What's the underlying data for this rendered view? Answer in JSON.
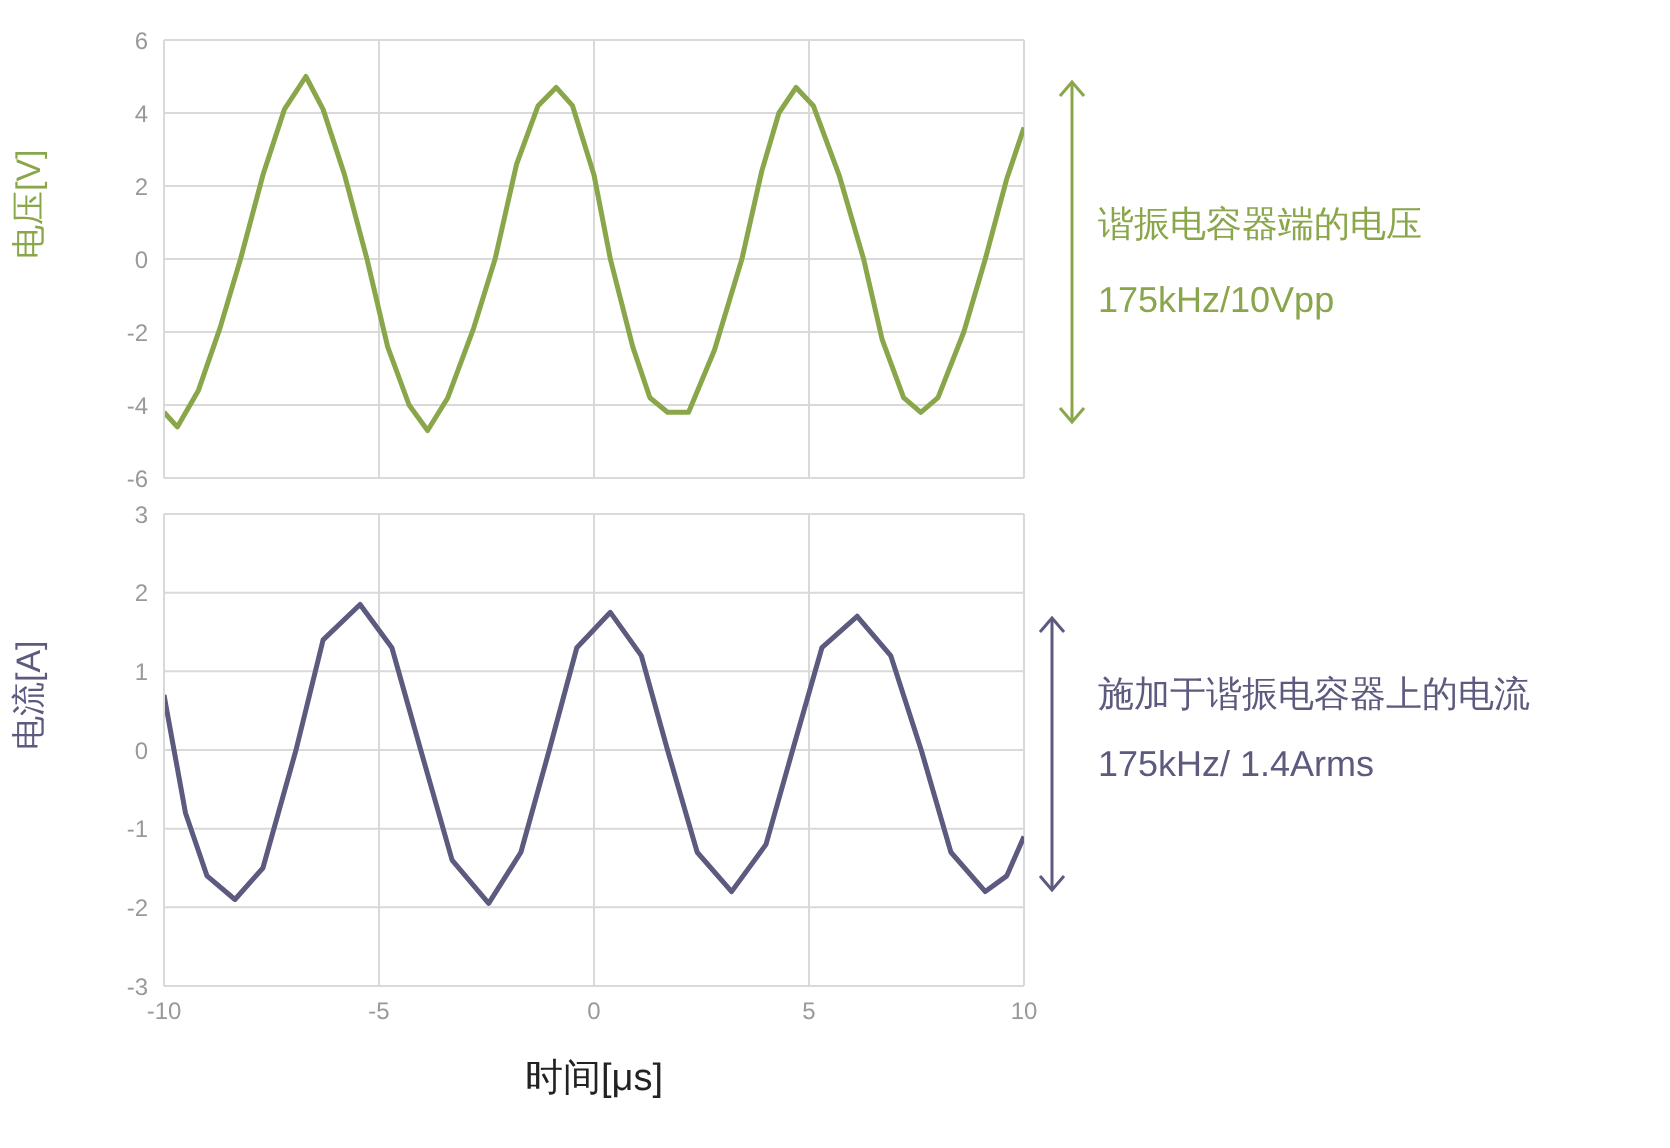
{
  "chart_data": [
    {
      "type": "line",
      "ylabel": "电压[V]",
      "xlim": [
        -10,
        10
      ],
      "xticks": [
        -10,
        -5,
        0,
        5,
        10
      ],
      "ylim": [
        -6,
        6
      ],
      "yticks": [
        -6,
        -4,
        -2,
        0,
        2,
        4,
        6
      ],
      "grid": true,
      "tick_labels": "y",
      "marker": "none",
      "line_style": "solid",
      "annotations": [
        "谐振电容器端的电压",
        "175kHz/10Vpp"
      ],
      "x": [
        -10,
        -9.69,
        -9.2,
        -8.7,
        -8.22,
        -7.7,
        -7.2,
        -6.7,
        -6.3,
        -5.8,
        -5.28,
        -4.8,
        -4.3,
        -3.87,
        -3.4,
        -2.8,
        -2.3,
        -1.8,
        -1.3,
        -0.88,
        -0.5,
        0,
        0.38,
        0.9,
        1.3,
        1.71,
        2.2,
        2.8,
        3.44,
        3.9,
        4.3,
        4.7,
        5.1,
        5.7,
        6.27,
        6.7,
        7.2,
        7.6,
        8.0,
        8.6,
        9.1,
        9.6,
        10
      ],
      "series": [
        {
          "color": "#8aa64a",
          "values": [
            -4.2,
            -4.6,
            -3.6,
            -1.9,
            0,
            2.3,
            4.1,
            5.0,
            4.1,
            2.3,
            0,
            -2.4,
            -4.0,
            -4.7,
            -3.8,
            -1.9,
            0,
            2.6,
            4.2,
            4.7,
            4.2,
            2.3,
            0,
            -2.4,
            -3.8,
            -4.2,
            -4.2,
            -2.5,
            0,
            2.4,
            4.0,
            4.7,
            4.2,
            2.3,
            0,
            -2.2,
            -3.8,
            -4.2,
            -3.8,
            -2.0,
            0,
            2.2,
            3.6
          ]
        }
      ]
    },
    {
      "type": "line",
      "ylabel": "电流[A]",
      "xlabel": "时间[μs]",
      "xlim": [
        -10,
        10
      ],
      "xticks": [
        -10,
        -5,
        0,
        5,
        10
      ],
      "ylim": [
        -3,
        3
      ],
      "yticks": [
        -3,
        -2,
        -1,
        0,
        1,
        2,
        3
      ],
      "grid": true,
      "marker": "none",
      "line_style": "solid",
      "annotations": [
        "施加于谐振电容器上的电流",
        "175kHz/ 1.4Arms"
      ],
      "x": [
        -10,
        -9.5,
        -9.0,
        -8.35,
        -7.7,
        -6.93,
        -6.3,
        -5.44,
        -4.7,
        -4.03,
        -3.3,
        -2.45,
        -1.7,
        -1.04,
        -0.4,
        0.38,
        1.1,
        1.71,
        2.4,
        3.2,
        4.0,
        4.62,
        5.3,
        6.12,
        6.9,
        7.61,
        8.3,
        9.1,
        9.6,
        10
      ],
      "series": [
        {
          "color": "#5c5a7e",
          "values": [
            0.7,
            -0.8,
            -1.6,
            -1.9,
            -1.5,
            0,
            1.4,
            1.85,
            1.3,
            0,
            -1.4,
            -1.95,
            -1.3,
            0,
            1.3,
            1.75,
            1.2,
            0,
            -1.3,
            -1.8,
            -1.2,
            0,
            1.3,
            1.7,
            1.2,
            0,
            -1.3,
            -1.8,
            -1.6,
            -1.1
          ]
        }
      ]
    }
  ]
}
